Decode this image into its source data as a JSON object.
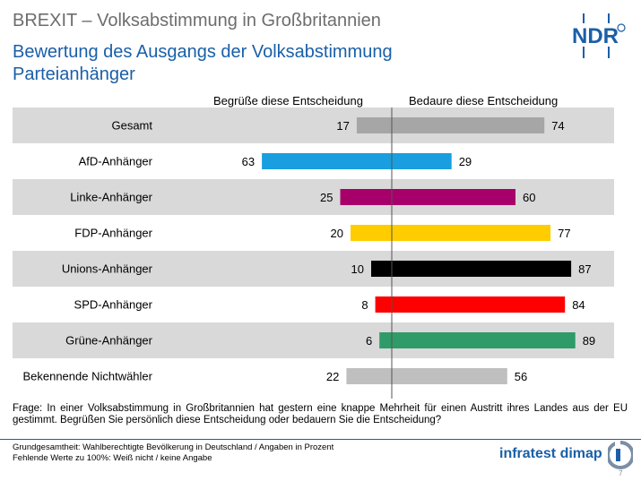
{
  "header": {
    "title": "BREXIT – Volksabstimmung in Großbritannien",
    "subtitle_line1": "Bewertung des Ausgangs der Volksabstimmung",
    "subtitle_line2": "Parteianhänger",
    "logo_text": "NDR"
  },
  "colors": {
    "title_gray": "#6d6d6d",
    "accent_blue": "#1a5fa8",
    "row_shade": "#d9d9d9"
  },
  "chart_data": {
    "type": "bar",
    "orientation": "horizontal-diverging",
    "series": [
      {
        "name": "Begrüße diese Entscheidung",
        "values": [
          17,
          63,
          25,
          20,
          10,
          8,
          6,
          22
        ]
      },
      {
        "name": "Bedaure diese Entscheidung",
        "values": [
          74,
          29,
          60,
          77,
          87,
          84,
          89,
          56
        ]
      }
    ],
    "categories": [
      "Gesamt",
      "AfD-Anhänger",
      "Linke-Anhänger",
      "FDP-Anhänger",
      "Unions-Anhänger",
      "SPD-Anhänger",
      "Grüne-Anhänger",
      "Bekennende Nichtwähler"
    ],
    "bar_colors": [
      "#a6a6a6",
      "#199fdf",
      "#a8006a",
      "#ffcc00",
      "#000000",
      "#ff0000",
      "#2e9b68",
      "#bfbfbf"
    ],
    "grid": false,
    "legend": "column headers above chart"
  },
  "question": "Frage: In einer Volksabstimmung in Großbritannien hat gestern eine knappe Mehrheit für einen Austritt ihres Landes aus der EU gestimmt. Begrüßen Sie persönlich diese Entscheidung oder bedauern Sie die Entscheidung?",
  "footer": {
    "line1": "Grundgesamtheit:  Wahlberechtigte Bevölkerung  in Deutschland / Angaben  in Prozent",
    "line2": "Fehlende  Werte zu 100%: Weiß nicht / keine Angabe",
    "brand": "infratest dimap",
    "page_number": "7"
  }
}
